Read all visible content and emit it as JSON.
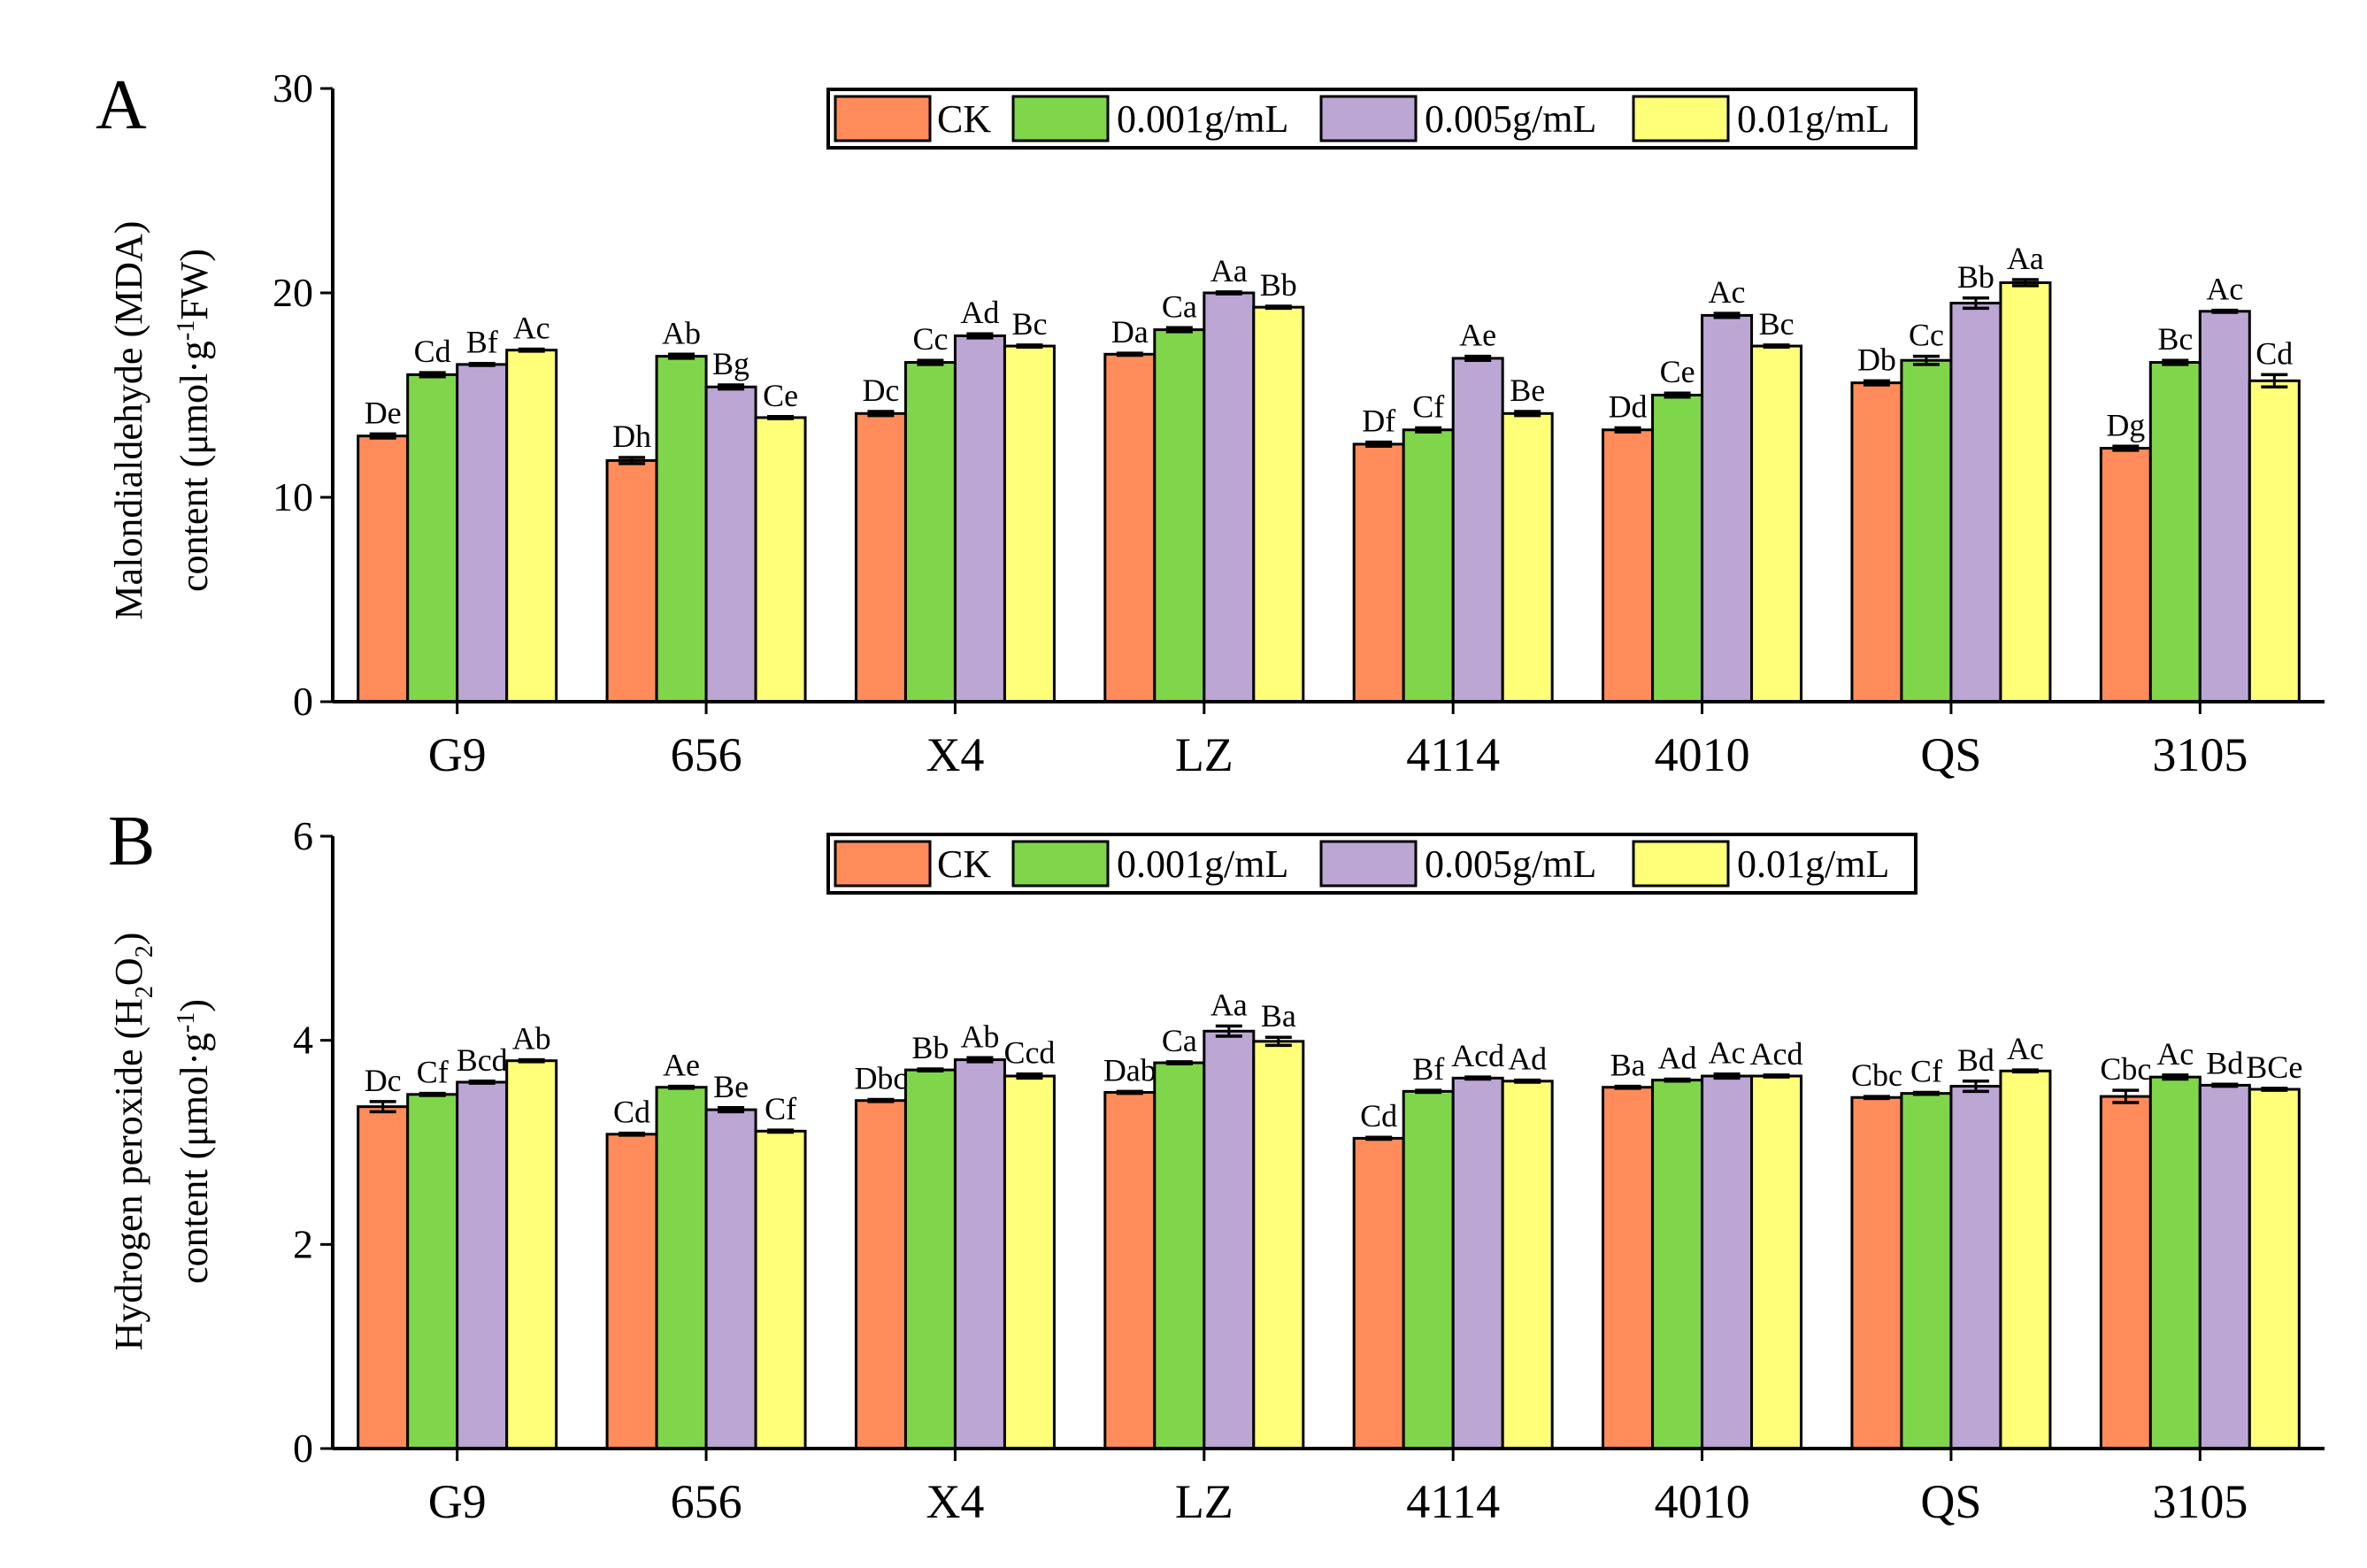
{
  "colors": {
    "CK": "#FF8C5A",
    "0.001g/mL": "#7FD64A",
    "0.005g/mL": "#BCA6D4",
    "0.01g/mL": "#FFFF78"
  },
  "chart_data": [
    {
      "panel_label": "A",
      "type": "bar",
      "ylabel_line1": "Malondialdehyde (MDA)",
      "ylabel_line2_main": "content (μmol·g",
      "ylabel_line2_sup": "-1",
      "ylabel_line2_end": "FW)",
      "ylim": [
        0,
        30
      ],
      "yticks": [
        0,
        10,
        20,
        30
      ],
      "legend_position": "top-right",
      "categories": [
        "G9",
        "656",
        "X4",
        "LZ",
        "4114",
        "4010",
        "QS",
        "3105"
      ],
      "series": [
        {
          "name": "CK",
          "values": [
            13.0,
            11.8,
            14.1,
            17.0,
            12.6,
            13.3,
            15.6,
            12.4
          ],
          "errors": [
            0.1,
            0.15,
            0.1,
            0.05,
            0.1,
            0.1,
            0.1,
            0.1
          ],
          "labels": [
            "De",
            "Dh",
            "Dc",
            "Da",
            "Df",
            "Dd",
            "Db",
            "Dg"
          ]
        },
        {
          "name": "0.001g/mL",
          "values": [
            16.0,
            16.9,
            16.6,
            18.2,
            13.3,
            15.0,
            16.7,
            16.6
          ],
          "errors": [
            0.1,
            0.1,
            0.1,
            0.1,
            0.1,
            0.1,
            0.2,
            0.1
          ],
          "labels": [
            "Cd",
            "Ab",
            "Cc",
            "Ca",
            "Cf",
            "Ce",
            "Cc",
            "Bc"
          ]
        },
        {
          "name": "0.005g/mL",
          "values": [
            16.5,
            15.4,
            17.9,
            20.0,
            16.8,
            18.9,
            19.5,
            19.1
          ],
          "errors": [
            0.05,
            0.1,
            0.1,
            0.05,
            0.1,
            0.1,
            0.25,
            0.05
          ],
          "labels": [
            "Bf",
            "Bg",
            "Ad",
            "Aa",
            "Ae",
            "Ac",
            "Bb",
            "Ac"
          ]
        },
        {
          "name": "0.01g/mL",
          "values": [
            17.2,
            13.9,
            17.4,
            19.3,
            14.1,
            17.4,
            20.5,
            15.7
          ],
          "errors": [
            0.05,
            0.05,
            0.05,
            0.05,
            0.1,
            0.05,
            0.15,
            0.3
          ],
          "labels": [
            "Ac",
            "Ce",
            "Bc",
            "Bb",
            "Be",
            "Bc",
            "Aa",
            "Cd"
          ]
        }
      ]
    },
    {
      "panel_label": "B",
      "type": "bar",
      "ylabel_line1_main": "Hydrogen peroxide (H",
      "ylabel_line1_sub1": "2",
      "ylabel_line1_mid": "O",
      "ylabel_line1_sub2": "2",
      "ylabel_line1_end": ")",
      "ylabel_line2_main": "content (μmol·g",
      "ylabel_line2_sup": "-1",
      "ylabel_line2_end": ")",
      "ylim": [
        0,
        6
      ],
      "yticks": [
        0,
        2,
        4,
        6
      ],
      "legend_position": "top-right",
      "categories": [
        "G9",
        "656",
        "X4",
        "LZ",
        "4114",
        "4010",
        "QS",
        "3105"
      ],
      "series": [
        {
          "name": "CK",
          "values": [
            3.35,
            3.08,
            3.41,
            3.49,
            3.04,
            3.54,
            3.44,
            3.45
          ],
          "errors": [
            0.05,
            0.01,
            0.01,
            0.01,
            0.01,
            0.01,
            0.01,
            0.06
          ],
          "labels": [
            "Dc",
            "Cd",
            "Dbc",
            "Dab",
            "Cd",
            "Ba",
            "Cbc",
            "Cbc"
          ]
        },
        {
          "name": "0.001g/mL",
          "values": [
            3.47,
            3.54,
            3.71,
            3.78,
            3.5,
            3.61,
            3.48,
            3.64
          ],
          "errors": [
            0.01,
            0.01,
            0.01,
            0.01,
            0.01,
            0.01,
            0.01,
            0.02
          ],
          "labels": [
            "Cf",
            "Ae",
            "Bb",
            "Ca",
            "Bf",
            "Ad",
            "Cf",
            "Ac"
          ]
        },
        {
          "name": "0.005g/mL",
          "values": [
            3.59,
            3.32,
            3.81,
            4.09,
            3.63,
            3.65,
            3.55,
            3.56
          ],
          "errors": [
            0.01,
            0.02,
            0.02,
            0.05,
            0.01,
            0.02,
            0.05,
            0.01
          ],
          "labels": [
            "Bcd",
            "Be",
            "Ab",
            "Aa",
            "Acd",
            "Ac",
            "Bd",
            "Bd"
          ]
        },
        {
          "name": "0.01g/mL",
          "values": [
            3.8,
            3.11,
            3.65,
            3.99,
            3.6,
            3.65,
            3.7,
            3.52
          ],
          "errors": [
            0.01,
            0.01,
            0.02,
            0.04,
            0.01,
            0.01,
            0.01,
            0.01
          ],
          "labels": [
            "Ab",
            "Cf",
            "Ccd",
            "Ba",
            "Ad",
            "Acd",
            "Ac",
            "BCe"
          ]
        }
      ]
    }
  ]
}
